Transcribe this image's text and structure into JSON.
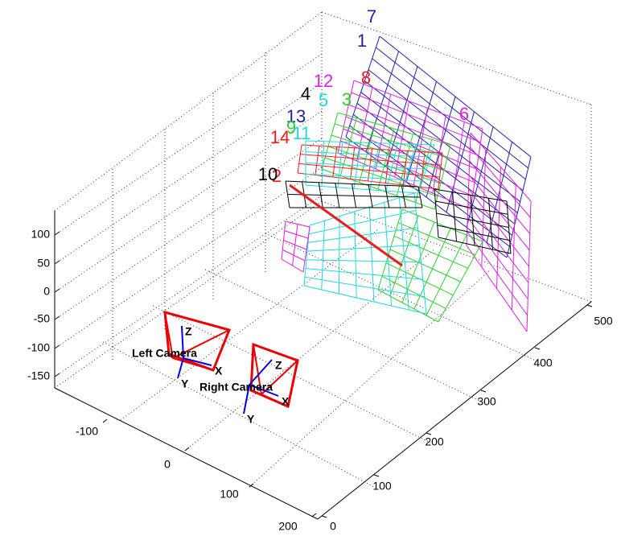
{
  "axes": {
    "zticks": [
      100,
      50,
      0,
      -50,
      -100,
      -150
    ],
    "xticks": [
      -100,
      0,
      100,
      200
    ],
    "yticks": [
      0,
      100,
      200,
      300,
      400,
      500
    ]
  },
  "cameras": [
    {
      "label": "Left Camera",
      "axis_labels": [
        "Z",
        "X",
        "Y"
      ]
    },
    {
      "label": "Right Camera",
      "axis_labels": [
        "Z",
        "X",
        "Y"
      ]
    }
  ],
  "planes": [
    {
      "label": "7",
      "color": "#1f1fa8"
    },
    {
      "label": "1",
      "color": "#1f1fa8"
    },
    {
      "label": "12",
      "color": "#e020e0"
    },
    {
      "label": "8",
      "color": "#ee1c1c"
    },
    {
      "label": "4",
      "color": "#000000"
    },
    {
      "label": "5",
      "color": "#20d8e0"
    },
    {
      "label": "3",
      "color": "#30d030"
    },
    {
      "label": "13",
      "color": "#1f1fa8"
    },
    {
      "label": "6",
      "color": "#e020e0"
    },
    {
      "label": "9",
      "color": "#30d030"
    },
    {
      "label": "11",
      "color": "#20d8e0"
    },
    {
      "label": "14",
      "color": "#ee1c1c"
    },
    {
      "label": "2",
      "color": "#ee1c1c"
    },
    {
      "label": "10",
      "color": "#000000"
    }
  ]
}
